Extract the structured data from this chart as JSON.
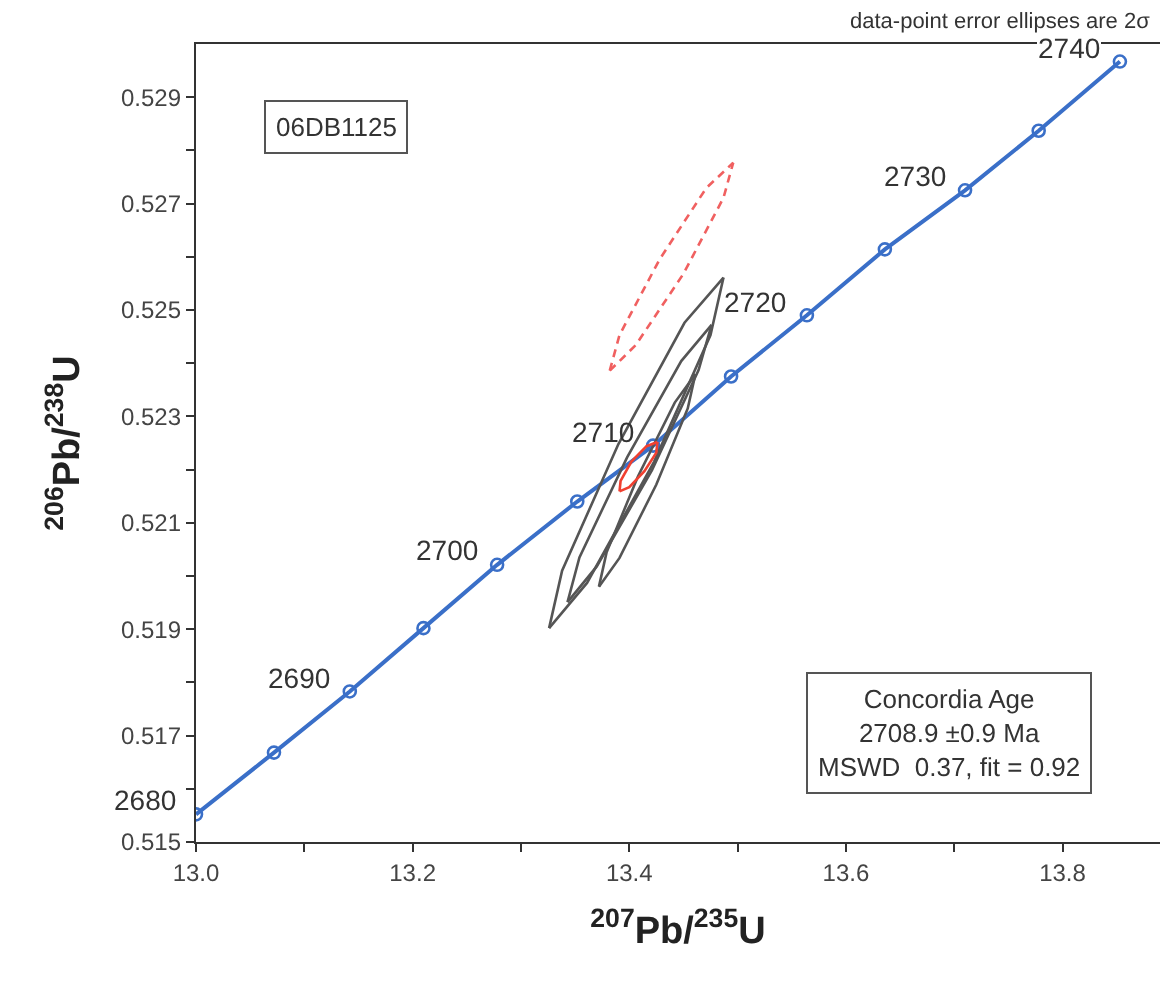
{
  "chart_data": {
    "type": "line",
    "xlabel": "$^{207}$Pb/$^{235}$U",
    "ylabel": "$^{206}$Pb/$^{238}$U",
    "xlim": [
      13.0,
      13.89
    ],
    "ylim": [
      0.515,
      0.53
    ],
    "xticks": [
      {
        "value": 13.0,
        "label": "13.0"
      },
      {
        "value": 13.1,
        "label": null
      },
      {
        "value": 13.2,
        "label": "13.2"
      },
      {
        "value": 13.3,
        "label": null
      },
      {
        "value": 13.4,
        "label": "13.4"
      },
      {
        "value": 13.5,
        "label": null
      },
      {
        "value": 13.6,
        "label": "13.6"
      },
      {
        "value": 13.7,
        "label": null
      },
      {
        "value": 13.8,
        "label": "13.8"
      }
    ],
    "yticks": [
      0.515,
      {
        "value": 0.516,
        "label": null
      },
      0.517,
      {
        "value": 0.518,
        "label": null
      },
      0.519,
      {
        "value": 0.52,
        "label": null
      },
      0.521,
      {
        "value": 0.522,
        "label": null
      },
      0.523,
      {
        "value": 0.524,
        "label": null
      },
      0.525,
      {
        "value": 0.526,
        "label": null
      },
      0.527,
      {
        "value": 0.528,
        "label": null
      },
      0.529
    ],
    "series": [
      {
        "color": "#3a6fc8",
        "marker": "circle",
        "line_style": "solid",
        "x": [
          13.0,
          13.072,
          13.142,
          13.21,
          13.278,
          13.352,
          13.422,
          13.494,
          13.564,
          13.636,
          13.71,
          13.778,
          13.853
        ],
        "values": [
          0.51552,
          0.51668,
          0.51783,
          0.51902,
          0.52021,
          0.5214,
          0.52245,
          0.52375,
          0.5249,
          0.52614,
          0.52725,
          0.52837,
          0.52967
        ]
      },
      {
        "color": "#f06060",
        "marker": "none",
        "line_style": "dashed",
        "x": [
          13.382,
          13.406,
          13.45,
          13.487,
          13.496
        ],
        "values": [
          0.52386,
          0.52434,
          0.52568,
          0.52711,
          0.52777
        ]
      },
      {
        "color": "#f06060",
        "marker": "none",
        "line_style": "dashed",
        "x": [
          13.382,
          13.391,
          13.428,
          13.471,
          13.496
        ],
        "values": [
          0.52386,
          0.52453,
          0.52595,
          0.52729,
          0.52777
        ]
      },
      {
        "color": "#555555",
        "marker": "none",
        "line_style": "solid",
        "x": [
          13.326,
          13.361,
          13.423,
          13.475,
          13.487
        ],
        "values": [
          0.51902,
          0.51987,
          0.52215,
          0.52453,
          0.52561
        ]
      },
      {
        "color": "#555555",
        "marker": "none",
        "line_style": "solid",
        "x": [
          13.326,
          13.338,
          13.39,
          13.451,
          13.487
        ],
        "values": [
          0.51902,
          0.5201,
          0.52248,
          0.52476,
          0.52561
        ]
      },
      {
        "color": "#555555",
        "marker": "none",
        "line_style": "solid",
        "x": [
          13.343,
          13.37,
          13.421,
          13.464,
          13.476
        ],
        "values": [
          0.51951,
          0.52018,
          0.52199,
          0.52387,
          0.52472
        ]
      },
      {
        "color": "#555555",
        "marker": "none",
        "line_style": "solid",
        "x": [
          13.343,
          13.354,
          13.398,
          13.448,
          13.476
        ],
        "values": [
          0.51951,
          0.52035,
          0.52223,
          0.52404,
          0.52472
        ]
      },
      {
        "color": "#555555",
        "marker": "none",
        "line_style": "solid",
        "x": [
          13.372,
          13.391,
          13.425,
          13.454,
          13.461
        ],
        "values": [
          0.5198,
          0.52034,
          0.52172,
          0.52315,
          0.52379
        ]
      },
      {
        "color": "#555555",
        "marker": "none",
        "line_style": "solid",
        "x": [
          13.372,
          13.379,
          13.408,
          13.442,
          13.461
        ],
        "values": [
          0.5198,
          0.52044,
          0.52187,
          0.52326,
          0.52379
        ]
      },
      {
        "color": "#f04030",
        "marker": "none",
        "line_style": "solid",
        "x": [
          13.391,
          13.4,
          13.414,
          13.425,
          13.426
        ],
        "values": [
          0.52159,
          0.52167,
          0.52197,
          0.52232,
          0.52252
        ]
      },
      {
        "color": "#f04030",
        "marker": "none",
        "line_style": "solid",
        "x": [
          13.391,
          13.392,
          13.402,
          13.416,
          13.426
        ],
        "values": [
          0.52159,
          0.52179,
          0.52215,
          0.52244,
          0.52252
        ]
      }
    ],
    "annotations": [
      {
        "text": "2680",
        "x": 13.0,
        "y": 0.51552
      },
      {
        "text": "2690",
        "x": 13.142,
        "y": 0.51783
      },
      {
        "text": "2700",
        "x": 13.278,
        "y": 0.52021
      },
      {
        "text": "2710",
        "x": 13.422,
        "y": 0.52245
      },
      {
        "text": "2720",
        "x": 13.564,
        "y": 0.5249
      },
      {
        "text": "2730",
        "x": 13.71,
        "y": 0.52725
      },
      {
        "text": "2740",
        "x": 13.853,
        "y": 0.52967
      },
      "06DB1125",
      "Concordia Age\n2708.9 ±0.9 Ma\nMSWD  0.37, fit = 0.92",
      "data-point error ellipses are 2σ"
    ]
  }
}
